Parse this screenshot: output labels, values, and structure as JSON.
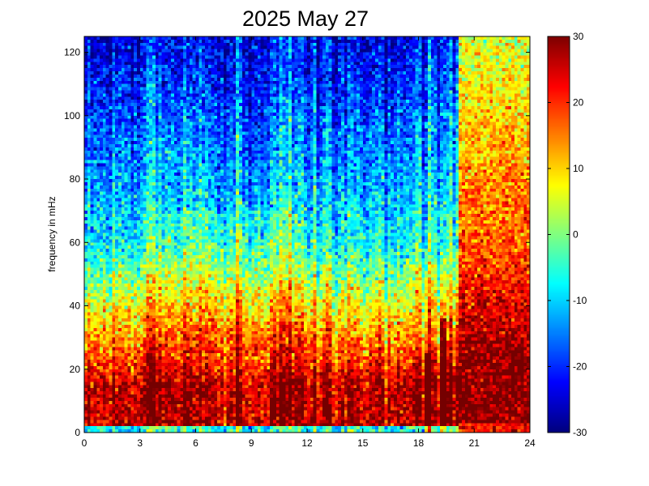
{
  "chart_data": {
    "type": "heatmap",
    "title": "2025 May 27",
    "xlabel": "",
    "ylabel": "frequency in mHz",
    "xlim": [
      0,
      24
    ],
    "ylim": [
      0,
      125
    ],
    "xticks": [
      0,
      3,
      6,
      9,
      12,
      15,
      18,
      21,
      24
    ],
    "yticks": [
      0,
      20,
      40,
      60,
      80,
      100,
      120
    ],
    "colorbar": {
      "clim": [
        -30,
        30
      ],
      "ticks": [
        -30,
        -20,
        -10,
        0,
        10,
        20,
        30
      ],
      "colormap": "jet"
    },
    "grid": false,
    "resolution": {
      "time_bins": 144,
      "freq_bins": 125
    },
    "regions": [
      {
        "hours": [
          0,
          20.2
        ],
        "description_values": "low-frequency band 0-15 mHz near 20-30; mid band 20-60 mHz around 0-15; upper band 60-125 mHz around -25 to -10"
      },
      {
        "hours": [
          20.2,
          24
        ],
        "description_values": "0-20 mHz ~ 30; 20-50 mHz ~ 18-28; 50-125 mHz ~ 0-15"
      }
    ],
    "features": [
      {
        "type": "vertical_streak",
        "hour": 18.5,
        "freq_max": 25
      },
      {
        "type": "vertical_streak",
        "hour": 19.3,
        "freq_max": 36
      }
    ]
  }
}
